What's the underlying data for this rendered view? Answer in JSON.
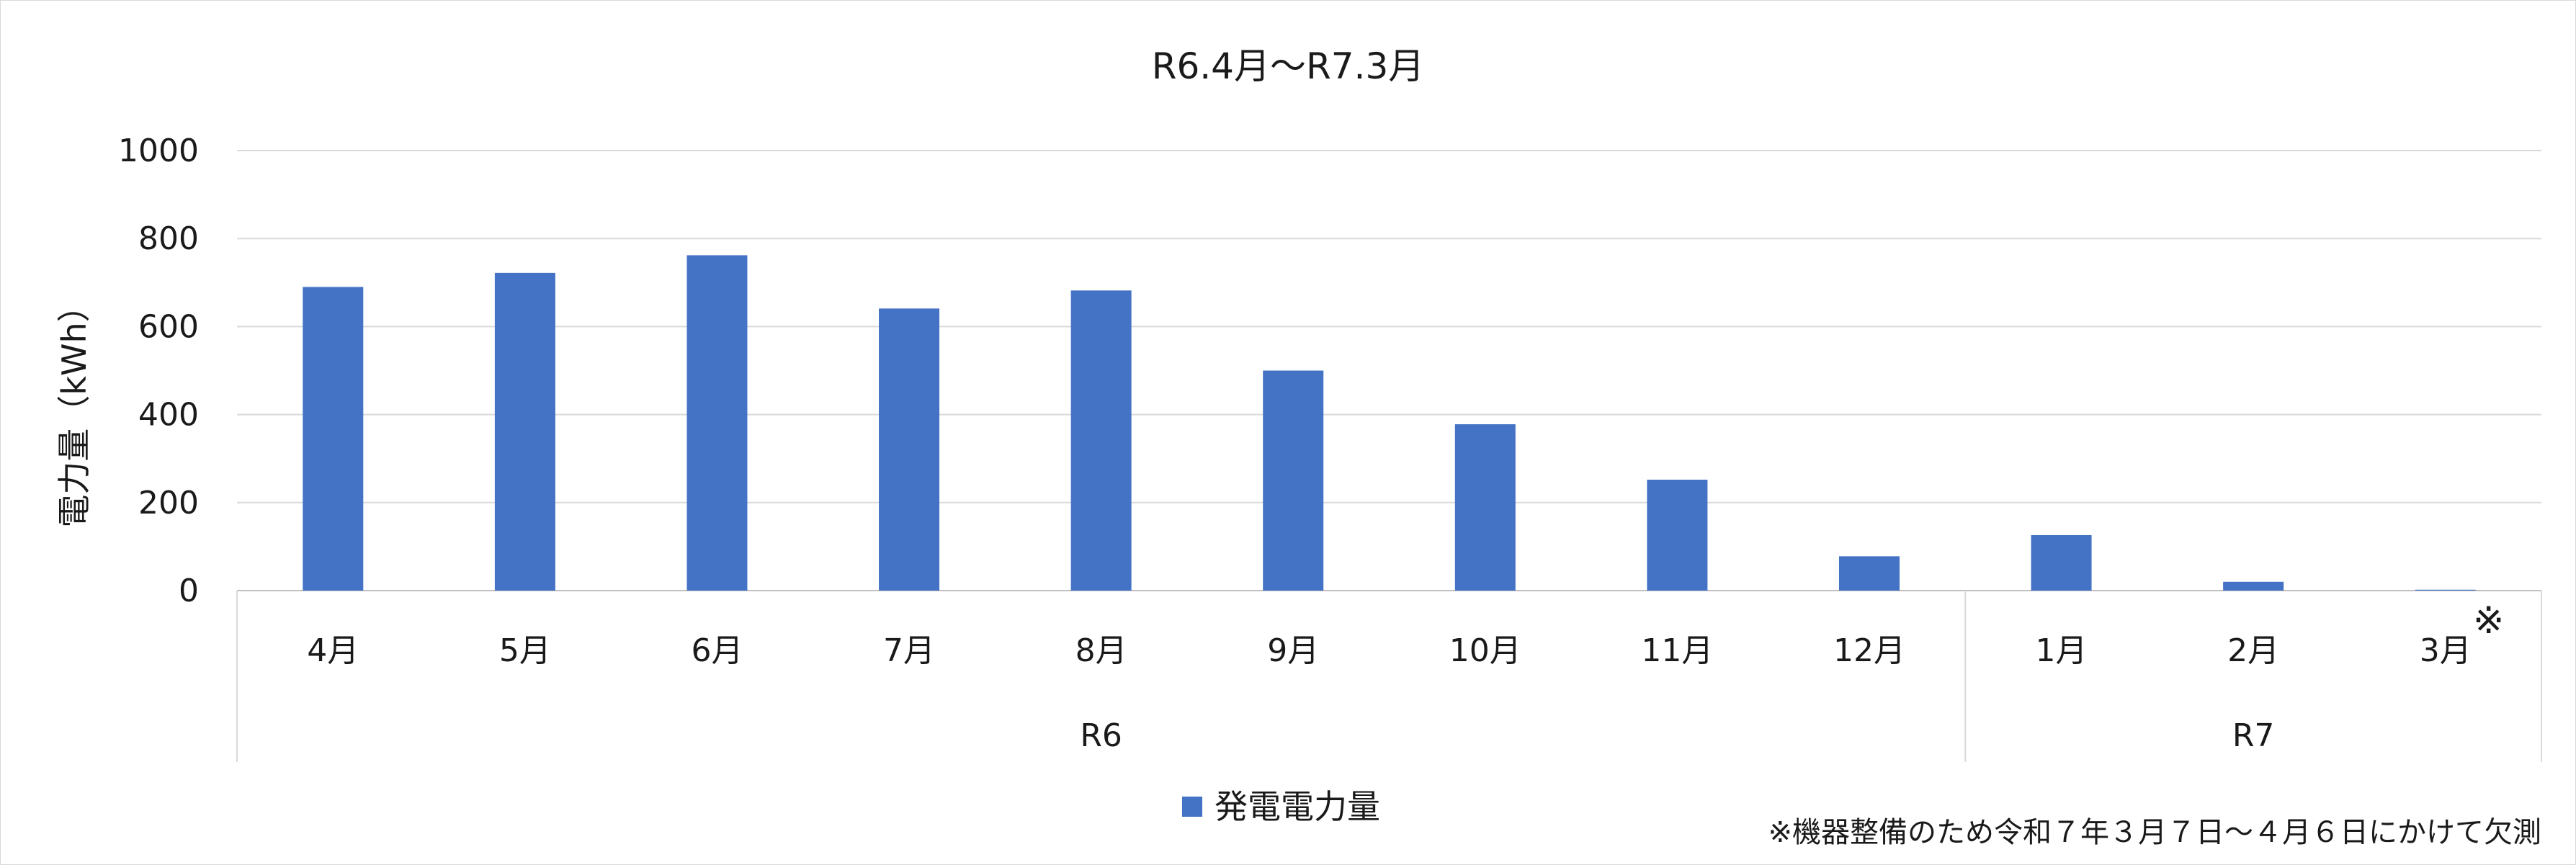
{
  "chart_data": {
    "type": "bar",
    "title": "R6.4月～R7.3月",
    "ylabel": "電力量（kWh）",
    "xlabel": "",
    "ylim": [
      0,
      1000
    ],
    "yticks": [
      0,
      200,
      400,
      600,
      800,
      1000
    ],
    "grid": true,
    "legend_position": "bottom",
    "categories": [
      "4月",
      "5月",
      "6月",
      "7月",
      "8月",
      "9月",
      "10月",
      "11月",
      "12月",
      "1月",
      "2月",
      "3月"
    ],
    "groups": [
      {
        "label": "R6",
        "count": 9
      },
      {
        "label": "R7",
        "count": 3
      }
    ],
    "series": [
      {
        "name": "発電電力量",
        "color": "#4472C4",
        "values": [
          690,
          722,
          762,
          641,
          682,
          500,
          378,
          252,
          78,
          126,
          20,
          2
        ]
      }
    ],
    "annotation_mark": "※",
    "annotation_category": "3月",
    "footnote": "※機器整備のため令和７年３月７日～４月６日にかけて欠測"
  }
}
